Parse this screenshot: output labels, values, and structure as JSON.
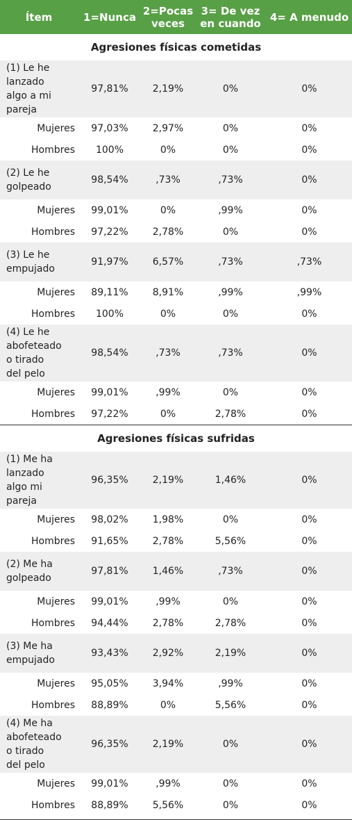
{
  "header": [
    "Ítem",
    "1=Nunca",
    "2=Pocas veces",
    "3= De vez en cuando",
    "4= A menudo"
  ],
  "sections": [
    {
      "title": "Agresiones físicas cometidas",
      "rows": [
        {
          "label": "(1) Le he lanzado algo a mi pareja",
          "values": [
            "97,81%",
            "2,19%",
            "0%",
            "0%"
          ],
          "type": "item",
          "lines": [
            "(1) Le he",
            "lanzado",
            "algo a mi",
            "pareja"
          ]
        },
        {
          "label": "Mujeres",
          "values": [
            "97,03%",
            "2,97%",
            "0%",
            "0%"
          ],
          "type": "sub"
        },
        {
          "label": "Hombres",
          "values": [
            "100%",
            "0%",
            "0%",
            "0%"
          ],
          "type": "sub"
        },
        {
          "label": "(2) Le he golpeado",
          "values": [
            "98,54%",
            ",73%",
            ",73%",
            "0%"
          ],
          "type": "item",
          "lines": [
            "(2) Le he",
            "golpeado"
          ]
        },
        {
          "label": "Mujeres",
          "values": [
            "99,01%",
            "0%",
            ",99%",
            "0%"
          ],
          "type": "sub"
        },
        {
          "label": "Hombres",
          "values": [
            "97,22%",
            "2,78%",
            "0%",
            "0%"
          ],
          "type": "sub"
        },
        {
          "label": "(3) Le he empujado",
          "values": [
            "91,97%",
            "6,57%",
            ",73%",
            ",73%"
          ],
          "type": "item",
          "lines": [
            "(3) Le he",
            "empujado"
          ]
        },
        {
          "label": "Mujeres",
          "values": [
            "89,11%",
            "8,91%",
            ",99%",
            ",99%"
          ],
          "type": "sub"
        },
        {
          "label": "Hombres",
          "values": [
            "100%",
            "0%",
            "0%",
            "0%"
          ],
          "type": "sub"
        },
        {
          "label": "(4) Le he abofeteado o tirado del pelo",
          "values": [
            "98,54%",
            ",73%",
            ",73%",
            "0%"
          ],
          "type": "item",
          "lines": [
            "(4) Le he",
            "abofeteado",
            "o tirado",
            "del pelo"
          ]
        },
        {
          "label": "Mujeres",
          "values": [
            "99,01%",
            ",99%",
            "0%",
            "0%"
          ],
          "type": "sub"
        },
        {
          "label": "Hombres",
          "values": [
            "97,22%",
            "0%",
            "2,78%",
            "0%"
          ],
          "type": "sub"
        }
      ]
    },
    {
      "title": "Agresiones físicas sufridas",
      "rows": [
        {
          "label": "(1) Me ha lanzado algo mi pareja",
          "values": [
            "96,35%",
            "2,19%",
            "1,46%",
            "0%"
          ],
          "type": "item",
          "lines": [
            "(1) Me ha",
            "lanzado",
            "algo mi",
            "pareja"
          ]
        },
        {
          "label": "Mujeres",
          "values": [
            "98,02%",
            "1,98%",
            "0%",
            "0%"
          ],
          "type": "sub"
        },
        {
          "label": "Hombres",
          "values": [
            "91,65%",
            "2,78%",
            "5,56%",
            "0%"
          ],
          "type": "sub"
        },
        {
          "label": "(2) Me ha golpeado",
          "values": [
            "97,81%",
            "1,46%",
            ",73%",
            "0%"
          ],
          "type": "item",
          "lines": [
            "(2) Me ha",
            "golpeado"
          ]
        },
        {
          "label": "Mujeres",
          "values": [
            "99,01%",
            ",99%",
            "0%",
            "0%"
          ],
          "type": "sub"
        },
        {
          "label": "Hombres",
          "values": [
            "94,44%",
            "2,78%",
            "2,78%",
            "0%"
          ],
          "type": "sub"
        },
        {
          "label": "(3) Me ha empujado",
          "values": [
            "93,43%",
            "2,92%",
            "2,19%",
            "0%"
          ],
          "type": "item",
          "lines": [
            "(3) Me ha",
            "empujado"
          ]
        },
        {
          "label": "Mujeres",
          "values": [
            "95,05%",
            "3,94%",
            ",99%",
            "0%"
          ],
          "type": "sub"
        },
        {
          "label": "Hombres",
          "values": [
            "88,89%",
            "0%",
            "5,56%",
            "0%"
          ],
          "type": "sub"
        },
        {
          "label": "(4) Me ha abofeteado o tirado del pelo",
          "values": [
            "96,35%",
            "2,19%",
            "0%",
            "0%"
          ],
          "type": "item",
          "lines": [
            "(4) Me ha",
            "abofeteado",
            "o tirado",
            "del pelo"
          ]
        },
        {
          "label": "Mujeres",
          "values": [
            "99,01%",
            ",99%",
            "0%",
            "0%"
          ],
          "type": "sub"
        },
        {
          "label": "Hombres",
          "values": [
            "88,89%",
            "5,56%",
            "0%",
            "0%"
          ],
          "type": "sub"
        }
      ]
    }
  ],
  "colors": {
    "header_bg": "#57a045",
    "header_text": "#ffffff",
    "row_shade": "#eeeeee"
  }
}
